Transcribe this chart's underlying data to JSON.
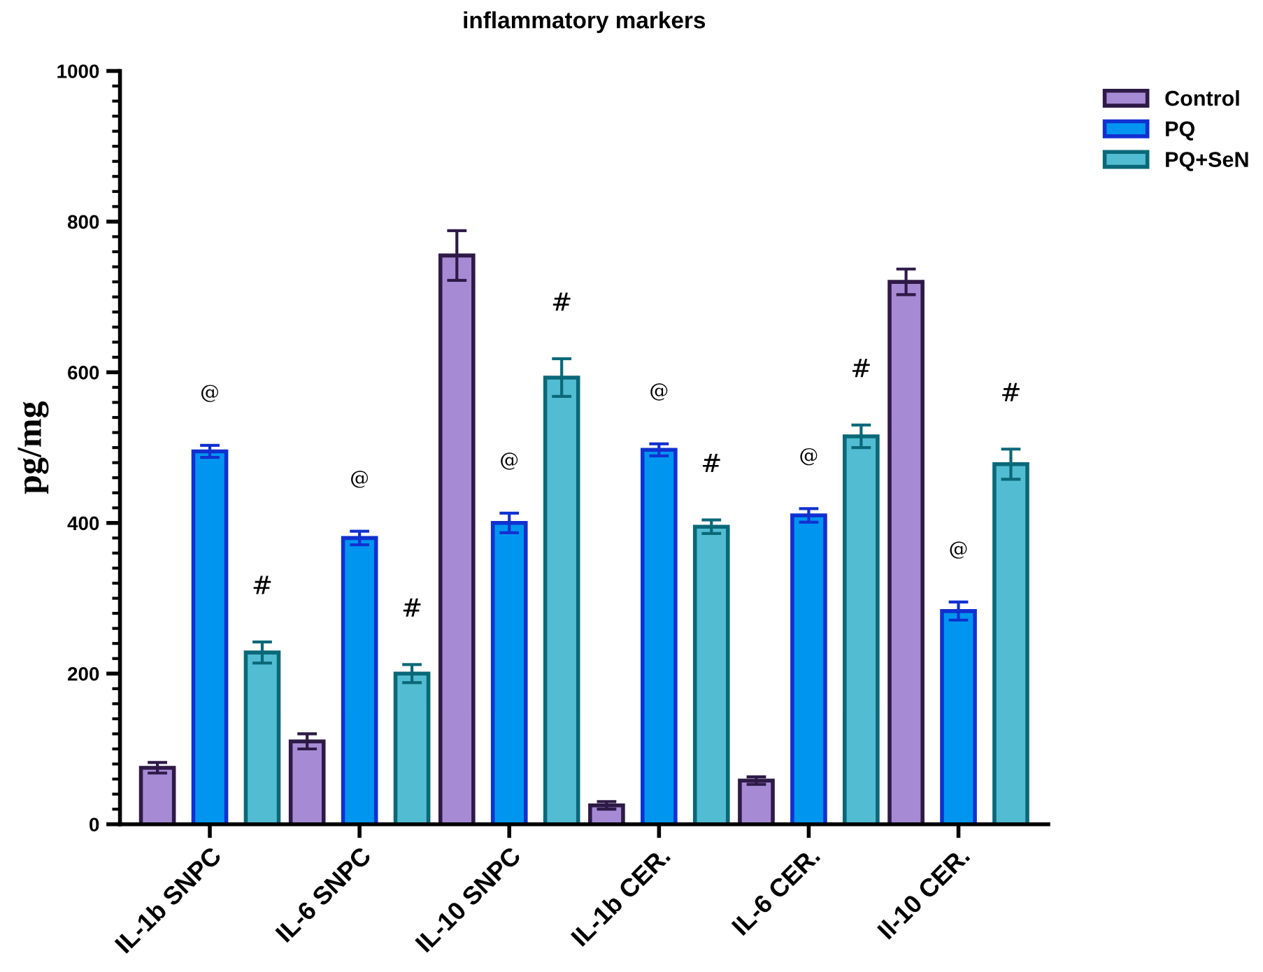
{
  "chart_data": {
    "type": "bar",
    "title": "inflammatory markers",
    "ylabel": "pg/mg",
    "categories": [
      "IL-1b SNPC",
      "IL-6 SNPC",
      "IL-10 SNPC",
      "IL-1b CER.",
      "IL-6 CER.",
      "Il-10 CER."
    ],
    "series": [
      {
        "name": "Control",
        "color": "#a68bd4",
        "values": [
          75,
          110,
          755,
          25,
          58,
          720
        ],
        "errors": [
          7,
          10,
          33,
          5,
          5,
          17
        ]
      },
      {
        "name": "PQ",
        "color": "#0096f0",
        "values": [
          495,
          380,
          400,
          497,
          410,
          283
        ],
        "errors": [
          8,
          9,
          13,
          8,
          9,
          12
        ],
        "value_labels": [
          "@",
          "@",
          "@",
          "@",
          "@",
          "@"
        ]
      },
      {
        "name": "PQ+SeN",
        "color": "#52bcd2",
        "values": [
          228,
          200,
          593,
          395,
          515,
          478
        ],
        "errors": [
          14,
          12,
          25,
          9,
          15,
          20
        ],
        "value_labels": [
          "#",
          "#",
          "#",
          "#",
          "#",
          "#"
        ]
      }
    ],
    "ylim": [
      0,
      1000
    ],
    "yticks": [
      0,
      200,
      400,
      600,
      800,
      1000
    ],
    "grid": false,
    "legend": "top right"
  }
}
